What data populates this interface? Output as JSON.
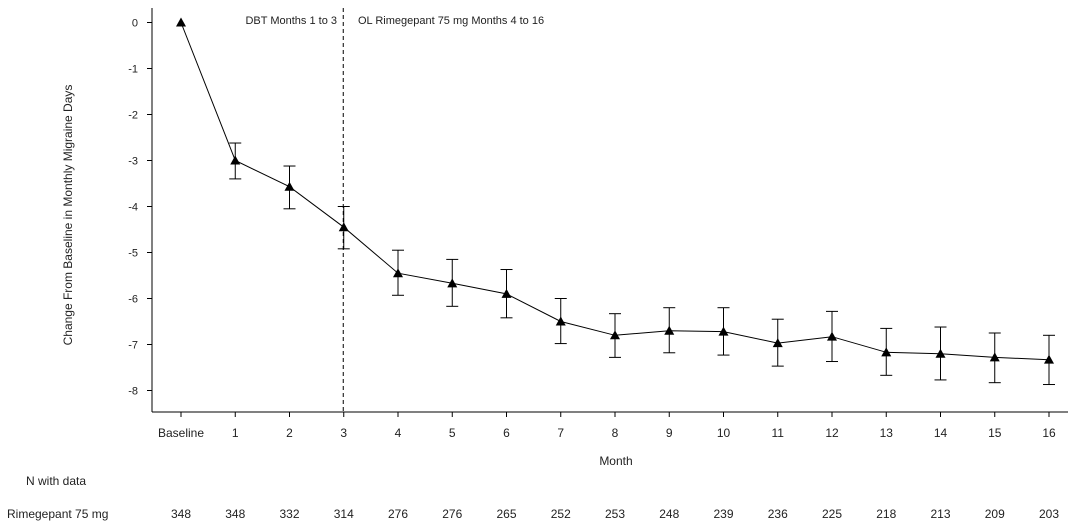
{
  "chart_data": {
    "type": "line",
    "title": "",
    "xlabel": "Month",
    "ylabel": "Change From Baseline in Monthly Migraine Days",
    "ylim": [
      -8.5,
      0.3
    ],
    "yticks": [
      "0",
      "-1",
      "-2",
      "-3",
      "-4",
      "-5",
      "-6",
      "-7",
      "-8"
    ],
    "categories": [
      "Baseline",
      "1",
      "2",
      "3",
      "4",
      "5",
      "6",
      "7",
      "8",
      "9",
      "10",
      "11",
      "12",
      "13",
      "14",
      "15",
      "16"
    ],
    "series": [
      {
        "name": "Rimegepant 75 mg",
        "values": [
          0,
          -3.0,
          -3.57,
          -4.45,
          -5.45,
          -5.67,
          -5.9,
          -6.5,
          -6.8,
          -6.7,
          -6.72,
          -6.97,
          -6.83,
          -7.17,
          -7.2,
          -7.28,
          -7.33
        ],
        "err_low": [
          null,
          -3.4,
          -4.05,
          -4.92,
          -5.93,
          -6.17,
          -6.42,
          -6.98,
          -7.28,
          -7.18,
          -7.23,
          -7.47,
          -7.37,
          -7.67,
          -7.77,
          -7.83,
          -7.87
        ],
        "err_high": [
          null,
          -2.62,
          -3.12,
          -4.0,
          -4.95,
          -5.15,
          -5.37,
          -6.0,
          -6.33,
          -6.2,
          -6.2,
          -6.45,
          -6.28,
          -6.65,
          -6.62,
          -6.75,
          -6.8
        ],
        "marker": "triangle",
        "color": "#000000"
      }
    ],
    "divider_after_category": "3",
    "annotations": [
      "DBT Months 1 to 3",
      "OL Rimegepant 75 mg Months 4 to 16"
    ],
    "n_table": {
      "heading": "N with data",
      "row_label": "Rimegepant 75 mg",
      "values": [
        "348",
        "348",
        "332",
        "314",
        "276",
        "276",
        "265",
        "252",
        "253",
        "248",
        "239",
        "236",
        "225",
        "218",
        "213",
        "209",
        "203"
      ]
    },
    "grid": false,
    "legend": "none"
  }
}
